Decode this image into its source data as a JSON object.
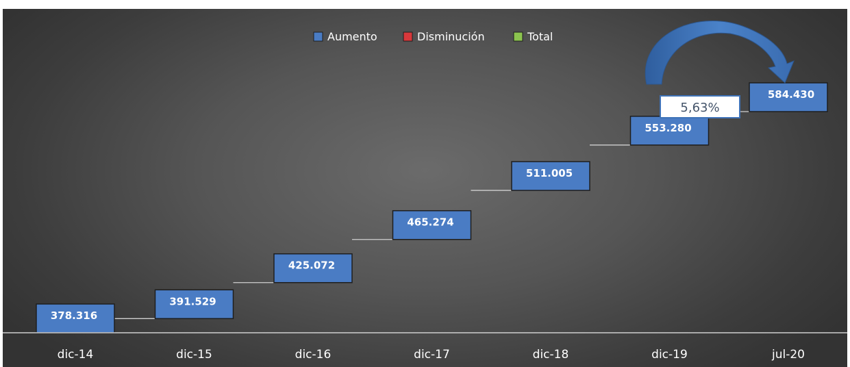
{
  "chart_data": {
    "type": "waterfall",
    "categories": [
      "dic-14",
      "dic-15",
      "dic-16",
      "dic-17",
      "dic-18",
      "dic-19",
      "jul-20"
    ],
    "values": [
      378316,
      391529,
      425072,
      465274,
      511005,
      553280,
      584430
    ],
    "value_labels": [
      "378.316",
      "391.529",
      "425.072",
      "465.274",
      "511.005",
      "553.280",
      "584.430"
    ],
    "legend": [
      {
        "label": "Aumento",
        "color": "#4a7cc4"
      },
      {
        "label": "Disminución",
        "color": "#d9383b"
      },
      {
        "label": "Total",
        "color": "#8cc44f"
      }
    ],
    "legend_position": "top",
    "annotation": {
      "text": "5,63%",
      "from_category": "dic-19",
      "to_category": "jul-20"
    },
    "grid": false,
    "colors": {
      "increase": "#4a7cc4",
      "increase_edge": "#1e1e1e",
      "connector": "#d0d0d0",
      "axis": "#cfcfcf",
      "arrow": "#3f73b8"
    }
  }
}
